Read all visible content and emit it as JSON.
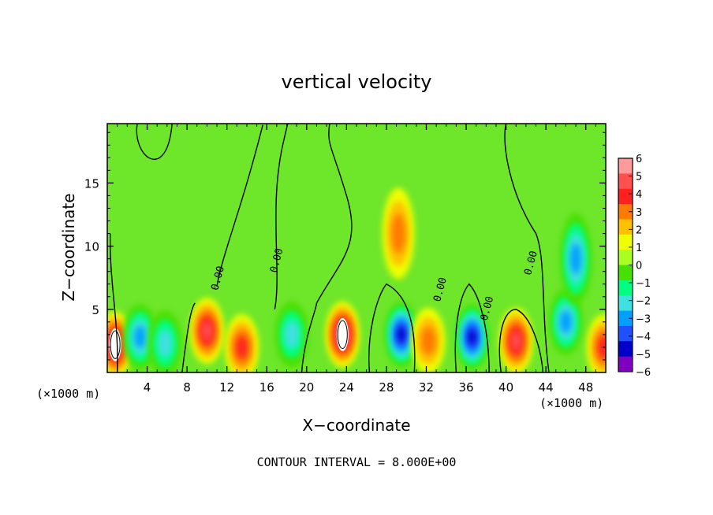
{
  "chart_data": {
    "type": "heatmap",
    "title": "vertical velocity",
    "xlabel": "X−coordinate",
    "ylabel": "Z−coordinate",
    "x_unit_left": "(×1000 m)",
    "x_unit_right": "(×1000 m)",
    "x_ticks": [
      4,
      8,
      12,
      16,
      20,
      24,
      28,
      32,
      36,
      40,
      44,
      48
    ],
    "y_ticks": [
      5,
      10,
      15
    ],
    "xlim": [
      0,
      50
    ],
    "ylim": [
      0,
      19.7
    ],
    "colorbar": {
      "ticks": [
        6,
        5,
        4,
        3,
        2,
        1,
        0,
        -1,
        -2,
        -3,
        -4,
        -5,
        -6
      ],
      "tick_labels": [
        "6",
        "5",
        "4",
        "3",
        "2",
        "1",
        "0",
        "−1",
        "−2",
        "−3",
        "−4",
        "−5",
        "−6"
      ],
      "colors": [
        "#ff9a9a",
        "#ff5050",
        "#ff2020",
        "#ff7a00",
        "#ffc000",
        "#f0ff00",
        "#a8ff20",
        "#48e000",
        "#00ff80",
        "#40e0e0",
        "#00a0ff",
        "#2050ff",
        "#0000c8",
        "#8000c0"
      ]
    },
    "contour_label": "0.00",
    "contour_interval_text": "CONTOUR INTERVAL =  8.000E+00",
    "features": [
      {
        "x": 0.8,
        "z": 2.2,
        "value": 6.5
      },
      {
        "x": 3.3,
        "z": 2.8,
        "value": -4
      },
      {
        "x": 5.8,
        "z": 2.3,
        "value": -3.5
      },
      {
        "x": 10,
        "z": 3.3,
        "value": 5
      },
      {
        "x": 13.5,
        "z": 2.0,
        "value": 4
      },
      {
        "x": 18.5,
        "z": 3.0,
        "value": -3
      },
      {
        "x": 23.6,
        "z": 3.0,
        "value": 6.5
      },
      {
        "x": 29.2,
        "z": 11.0,
        "value": 3.5
      },
      {
        "x": 29.5,
        "z": 3.0,
        "value": -6
      },
      {
        "x": 32.2,
        "z": 2.5,
        "value": 3.5
      },
      {
        "x": 36.6,
        "z": 2.8,
        "value": -6
      },
      {
        "x": 41,
        "z": 2.5,
        "value": 5
      },
      {
        "x": 46,
        "z": 4.0,
        "value": -4.5
      },
      {
        "x": 47,
        "z": 9.0,
        "value": -4.5
      },
      {
        "x": 49.8,
        "z": 2.0,
        "value": 4
      }
    ]
  }
}
